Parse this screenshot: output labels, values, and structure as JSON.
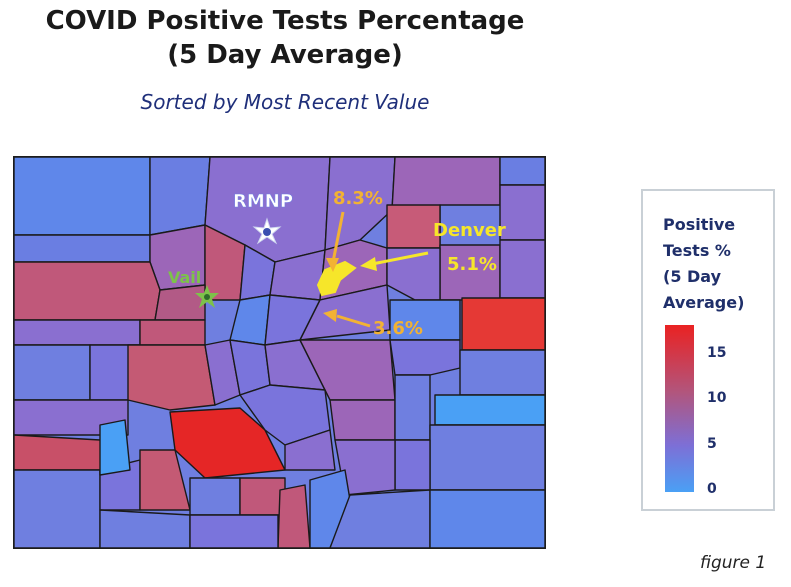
{
  "title_line1": "COVID Positive Tests Percentage",
  "title_line2": "(5 Day Average)",
  "subtitle": "Sorted by Most Recent Value",
  "legend": {
    "title_lines": [
      "Positive",
      "Tests %",
      "(5 Day",
      "Average)"
    ],
    "ticks": [
      "15",
      "10",
      "5",
      "0"
    ],
    "scale_min_color": "#4aa0f5",
    "scale_max_color": "#ea2222"
  },
  "annotations": {
    "rmnp": "RMNP",
    "vail": "Vail",
    "denver": "Denver",
    "denver_value": "5.1%",
    "north_value": "8.3%",
    "south_value": "3.6%"
  },
  "colors": {
    "annotation_yellow": "#f6e62a",
    "annotation_orange": "#f2b233",
    "annotation_white": "#ffffff",
    "annotation_green": "#7dc24a"
  },
  "figure_label": "figure 1"
}
